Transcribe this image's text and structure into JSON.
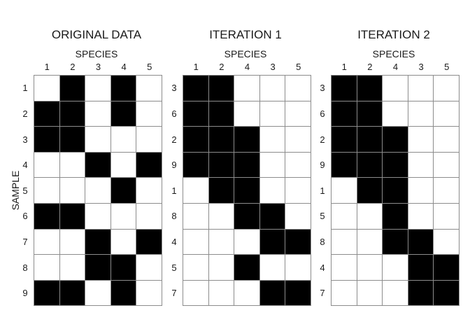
{
  "axis_labels": {
    "columns": "SPECIES",
    "rows": "SAMPLE"
  },
  "colors": {
    "present": "#000000",
    "absent": "#ffffff",
    "grid_line": "#8c8c8c"
  },
  "panels": [
    {
      "title": "ORIGINAL DATA",
      "species_order": [
        "1",
        "2",
        "3",
        "4",
        "5"
      ],
      "sample_order": [
        "1",
        "2",
        "3",
        "4",
        "5",
        "6",
        "7",
        "8",
        "9"
      ],
      "matrix": [
        [
          0,
          1,
          0,
          1,
          0
        ],
        [
          1,
          1,
          0,
          1,
          0
        ],
        [
          1,
          1,
          0,
          0,
          0
        ],
        [
          0,
          0,
          1,
          0,
          1
        ],
        [
          0,
          0,
          0,
          1,
          0
        ],
        [
          1,
          1,
          0,
          0,
          0
        ],
        [
          0,
          0,
          1,
          0,
          1
        ],
        [
          0,
          0,
          1,
          1,
          0
        ],
        [
          1,
          1,
          0,
          1,
          0
        ]
      ]
    },
    {
      "title": "ITERATION 1",
      "species_order": [
        "1",
        "2",
        "4",
        "3",
        "5"
      ],
      "sample_order": [
        "3",
        "6",
        "2",
        "9",
        "1",
        "8",
        "4",
        "5",
        "7"
      ],
      "matrix": [
        [
          1,
          1,
          0,
          0,
          0
        ],
        [
          1,
          1,
          0,
          0,
          0
        ],
        [
          1,
          1,
          1,
          0,
          0
        ],
        [
          1,
          1,
          1,
          0,
          0
        ],
        [
          0,
          1,
          1,
          0,
          0
        ],
        [
          0,
          0,
          1,
          1,
          0
        ],
        [
          0,
          0,
          0,
          1,
          1
        ],
        [
          0,
          0,
          1,
          0,
          0
        ],
        [
          0,
          0,
          0,
          1,
          1
        ]
      ]
    },
    {
      "title": "ITERATION 2",
      "species_order": [
        "1",
        "2",
        "4",
        "3",
        "5"
      ],
      "sample_order": [
        "3",
        "6",
        "2",
        "9",
        "1",
        "5",
        "8",
        "4",
        "7"
      ],
      "matrix": [
        [
          1,
          1,
          0,
          0,
          0
        ],
        [
          1,
          1,
          0,
          0,
          0
        ],
        [
          1,
          1,
          1,
          0,
          0
        ],
        [
          1,
          1,
          1,
          0,
          0
        ],
        [
          0,
          1,
          1,
          0,
          0
        ],
        [
          0,
          0,
          1,
          0,
          0
        ],
        [
          0,
          0,
          1,
          1,
          0
        ],
        [
          0,
          0,
          0,
          1,
          1
        ],
        [
          0,
          0,
          0,
          1,
          1
        ]
      ]
    }
  ]
}
